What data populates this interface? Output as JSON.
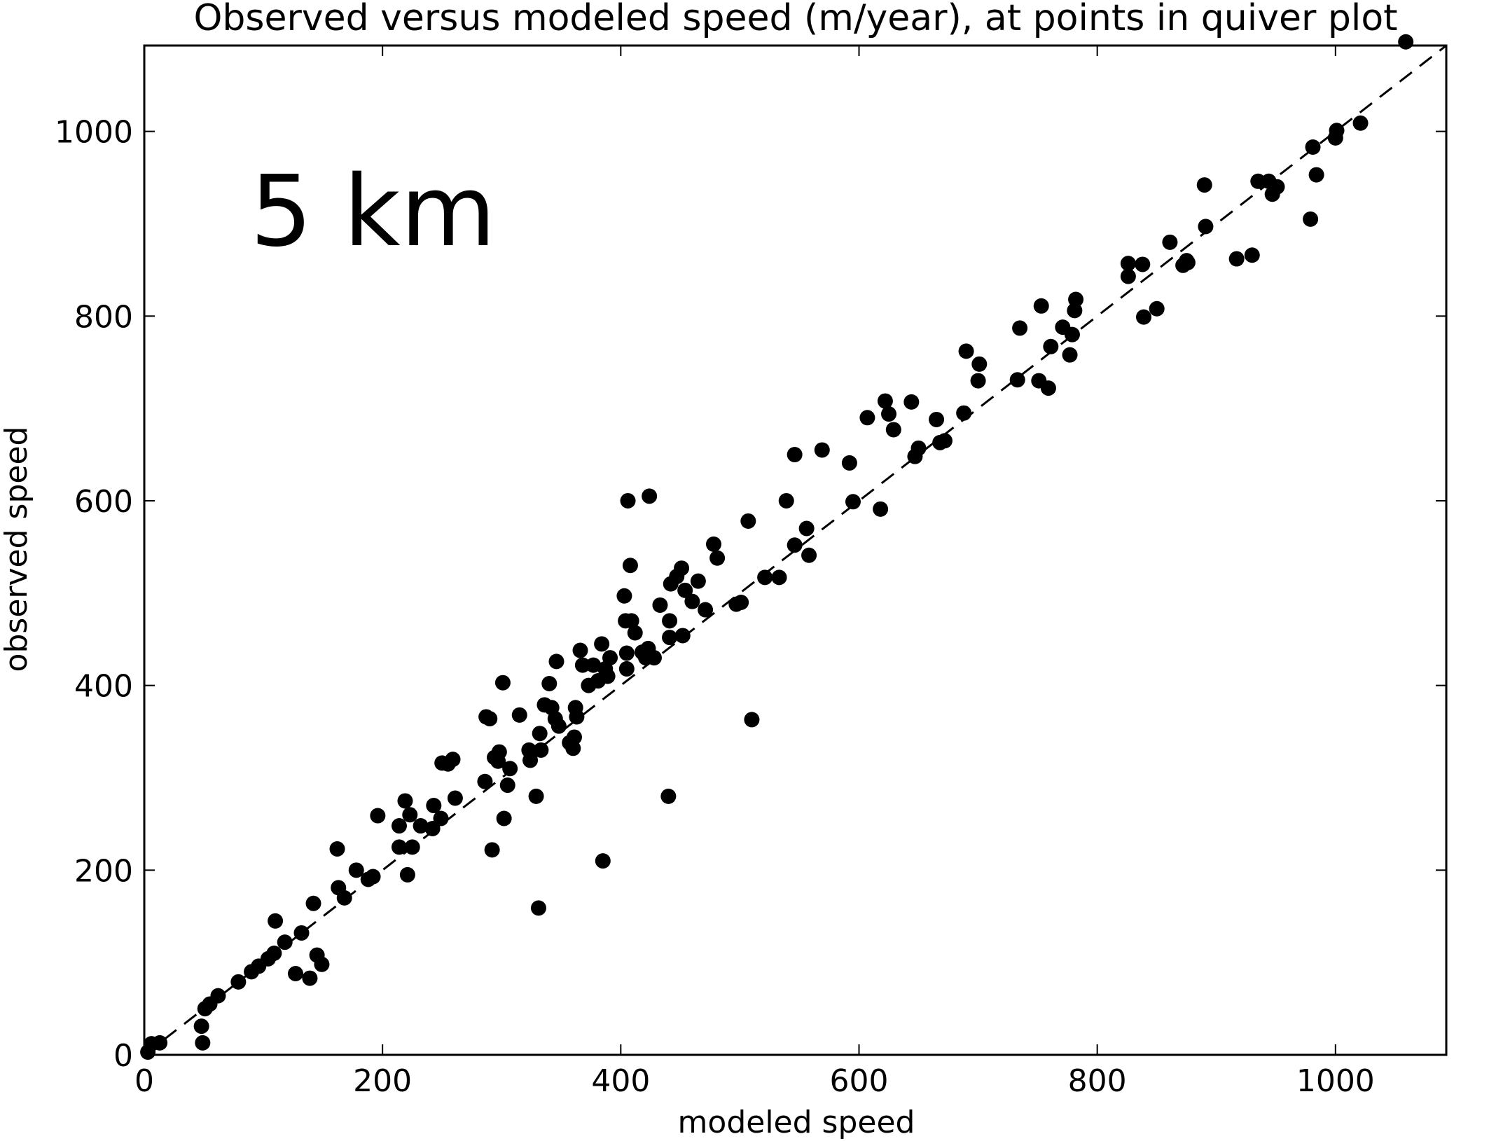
{
  "chart_data": {
    "type": "scatter",
    "title": "Observed versus modeled speed (m/year), at points in quiver plot",
    "xlabel": "modeled speed",
    "ylabel": "observed speed",
    "annotation": "5 km",
    "annotation_color": "#ee1c25",
    "marker_color": "#000000",
    "xlim": [
      0,
      1093
    ],
    "ylim": [
      0,
      1093
    ],
    "xticks": [
      0,
      200,
      400,
      600,
      800,
      1000
    ],
    "yticks": [
      0,
      200,
      400,
      600,
      800,
      1000
    ],
    "reference_line": {
      "style": "dashed",
      "x": [
        0,
        1093
      ],
      "y": [
        0,
        1093
      ]
    },
    "points": [
      [
        3,
        3
      ],
      [
        6,
        12
      ],
      [
        13,
        13
      ],
      [
        48,
        31
      ],
      [
        49,
        13
      ],
      [
        51,
        50
      ],
      [
        55,
        55
      ],
      [
        62,
        64
      ],
      [
        79,
        79
      ],
      [
        90,
        90
      ],
      [
        96,
        96
      ],
      [
        104,
        104
      ],
      [
        109,
        110
      ],
      [
        110,
        145
      ],
      [
        118,
        122
      ],
      [
        127,
        88
      ],
      [
        132,
        132
      ],
      [
        139,
        83
      ],
      [
        142,
        164
      ],
      [
        145,
        108
      ],
      [
        149,
        98
      ],
      [
        162,
        223
      ],
      [
        163,
        181
      ],
      [
        168,
        170
      ],
      [
        178,
        200
      ],
      [
        188,
        190
      ],
      [
        192,
        193
      ],
      [
        196,
        259
      ],
      [
        214,
        225
      ],
      [
        214,
        248
      ],
      [
        219,
        275
      ],
      [
        221,
        195
      ],
      [
        223,
        260
      ],
      [
        225,
        225
      ],
      [
        232,
        248
      ],
      [
        242,
        245
      ],
      [
        243,
        270
      ],
      [
        249,
        256
      ],
      [
        250,
        316
      ],
      [
        255,
        315
      ],
      [
        259,
        320
      ],
      [
        261,
        278
      ],
      [
        286,
        296
      ],
      [
        287,
        366
      ],
      [
        290,
        364
      ],
      [
        292,
        222
      ],
      [
        294,
        322
      ],
      [
        297,
        318
      ],
      [
        298,
        328
      ],
      [
        301,
        403
      ],
      [
        302,
        256
      ],
      [
        305,
        292
      ],
      [
        307,
        310
      ],
      [
        315,
        368
      ],
      [
        323,
        330
      ],
      [
        324,
        319
      ],
      [
        329,
        280
      ],
      [
        331,
        159
      ],
      [
        332,
        348
      ],
      [
        333,
        330
      ],
      [
        336,
        379
      ],
      [
        340,
        402
      ],
      [
        342,
        376
      ],
      [
        345,
        364
      ],
      [
        346,
        426
      ],
      [
        348,
        356
      ],
      [
        357,
        338
      ],
      [
        360,
        332
      ],
      [
        361,
        344
      ],
      [
        362,
        376
      ],
      [
        363,
        366
      ],
      [
        366,
        438
      ],
      [
        368,
        422
      ],
      [
        373,
        400
      ],
      [
        377,
        422
      ],
      [
        381,
        405
      ],
      [
        384,
        445
      ],
      [
        385,
        210
      ],
      [
        387,
        418
      ],
      [
        389,
        410
      ],
      [
        391,
        430
      ],
      [
        403,
        497
      ],
      [
        404,
        470
      ],
      [
        405,
        418
      ],
      [
        405,
        435
      ],
      [
        406,
        600
      ],
      [
        408,
        530
      ],
      [
        409,
        470
      ],
      [
        412,
        457
      ],
      [
        418,
        436
      ],
      [
        421,
        430
      ],
      [
        423,
        440
      ],
      [
        424,
        605
      ],
      [
        425,
        432
      ],
      [
        428,
        430
      ],
      [
        433,
        487
      ],
      [
        440,
        280
      ],
      [
        441,
        452
      ],
      [
        441,
        470
      ],
      [
        442,
        510
      ],
      [
        447,
        518
      ],
      [
        451,
        527
      ],
      [
        452,
        454
      ],
      [
        454,
        503
      ],
      [
        460,
        491
      ],
      [
        465,
        513
      ],
      [
        471,
        482
      ],
      [
        478,
        553
      ],
      [
        481,
        538
      ],
      [
        497,
        488
      ],
      [
        501,
        490
      ],
      [
        507,
        578
      ],
      [
        510,
        363
      ],
      [
        521,
        517
      ],
      [
        533,
        517
      ],
      [
        539,
        600
      ],
      [
        546,
        552
      ],
      [
        546,
        650
      ],
      [
        556,
        570
      ],
      [
        558,
        541
      ],
      [
        569,
        655
      ],
      [
        592,
        641
      ],
      [
        595,
        599
      ],
      [
        607,
        690
      ],
      [
        618,
        591
      ],
      [
        622,
        708
      ],
      [
        625,
        694
      ],
      [
        629,
        677
      ],
      [
        644,
        707
      ],
      [
        647,
        648
      ],
      [
        650,
        657
      ],
      [
        665,
        688
      ],
      [
        668,
        663
      ],
      [
        672,
        665
      ],
      [
        688,
        695
      ],
      [
        690,
        762
      ],
      [
        700,
        730
      ],
      [
        701,
        748
      ],
      [
        733,
        731
      ],
      [
        735,
        787
      ],
      [
        751,
        730
      ],
      [
        753,
        811
      ],
      [
        759,
        722
      ],
      [
        761,
        767
      ],
      [
        771,
        788
      ],
      [
        777,
        758
      ],
      [
        779,
        780
      ],
      [
        781,
        806
      ],
      [
        782,
        818
      ],
      [
        826,
        843
      ],
      [
        826,
        857
      ],
      [
        838,
        856
      ],
      [
        839,
        799
      ],
      [
        850,
        808
      ],
      [
        861,
        880
      ],
      [
        872,
        855
      ],
      [
        875,
        860
      ],
      [
        876,
        858
      ],
      [
        890,
        942
      ],
      [
        891,
        897
      ],
      [
        917,
        862
      ],
      [
        930,
        866
      ],
      [
        935,
        946
      ],
      [
        944,
        946
      ],
      [
        947,
        932
      ],
      [
        951,
        940
      ],
      [
        979,
        905
      ],
      [
        981,
        983
      ],
      [
        984,
        953
      ],
      [
        1000,
        993
      ],
      [
        1001,
        1001
      ],
      [
        1021,
        1009
      ],
      [
        1059,
        1097
      ]
    ]
  }
}
